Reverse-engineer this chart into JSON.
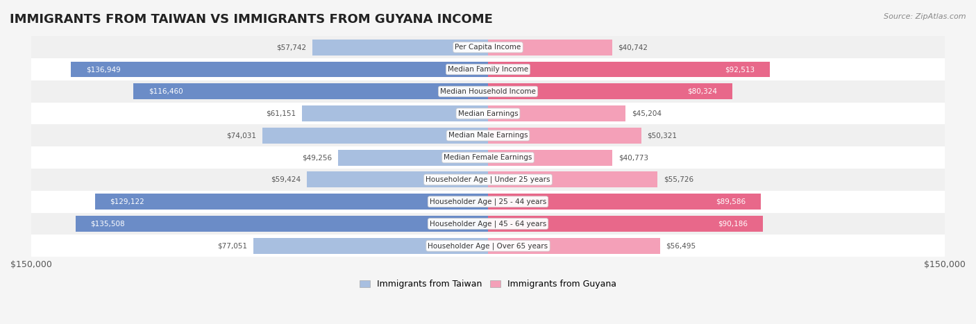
{
  "title": "IMMIGRANTS FROM TAIWAN VS IMMIGRANTS FROM GUYANA INCOME",
  "source": "Source: ZipAtlas.com",
  "categories": [
    "Per Capita Income",
    "Median Family Income",
    "Median Household Income",
    "Median Earnings",
    "Median Male Earnings",
    "Median Female Earnings",
    "Householder Age | Under 25 years",
    "Householder Age | 25 - 44 years",
    "Householder Age | 45 - 64 years",
    "Householder Age | Over 65 years"
  ],
  "taiwan_values": [
    57742,
    136949,
    116460,
    61151,
    74031,
    49256,
    59424,
    129122,
    135508,
    77051
  ],
  "guyana_values": [
    40742,
    92513,
    80324,
    45204,
    50321,
    40773,
    55726,
    89586,
    90186,
    56495
  ],
  "taiwan_labels": [
    "$57,742",
    "$136,949",
    "$116,460",
    "$61,151",
    "$74,031",
    "$49,256",
    "$59,424",
    "$129,122",
    "$135,508",
    "$77,051"
  ],
  "guyana_labels": [
    "$40,742",
    "$92,513",
    "$80,324",
    "$45,204",
    "$50,321",
    "$40,773",
    "$55,726",
    "$89,586",
    "$90,186",
    "$56,495"
  ],
  "taiwan_color_bar": "#a8bfe0",
  "guyana_color_bar": "#f4a0b8",
  "taiwan_color_solid": "#6b8cc7",
  "guyana_color_solid": "#e8688a",
  "taiwan_label_color_inside": "#ffffff",
  "taiwan_label_color_outside": "#555555",
  "guyana_label_color_inside": "#ffffff",
  "guyana_label_color_outside": "#555555",
  "max_value": 150000,
  "background_color": "#f5f5f5",
  "row_background": "#ffffff",
  "legend_taiwan": "Immigrants from Taiwan",
  "legend_guyana": "Immigrants from Guyana",
  "taiwan_solid_threshold": 100000,
  "guyana_solid_threshold": 80000
}
